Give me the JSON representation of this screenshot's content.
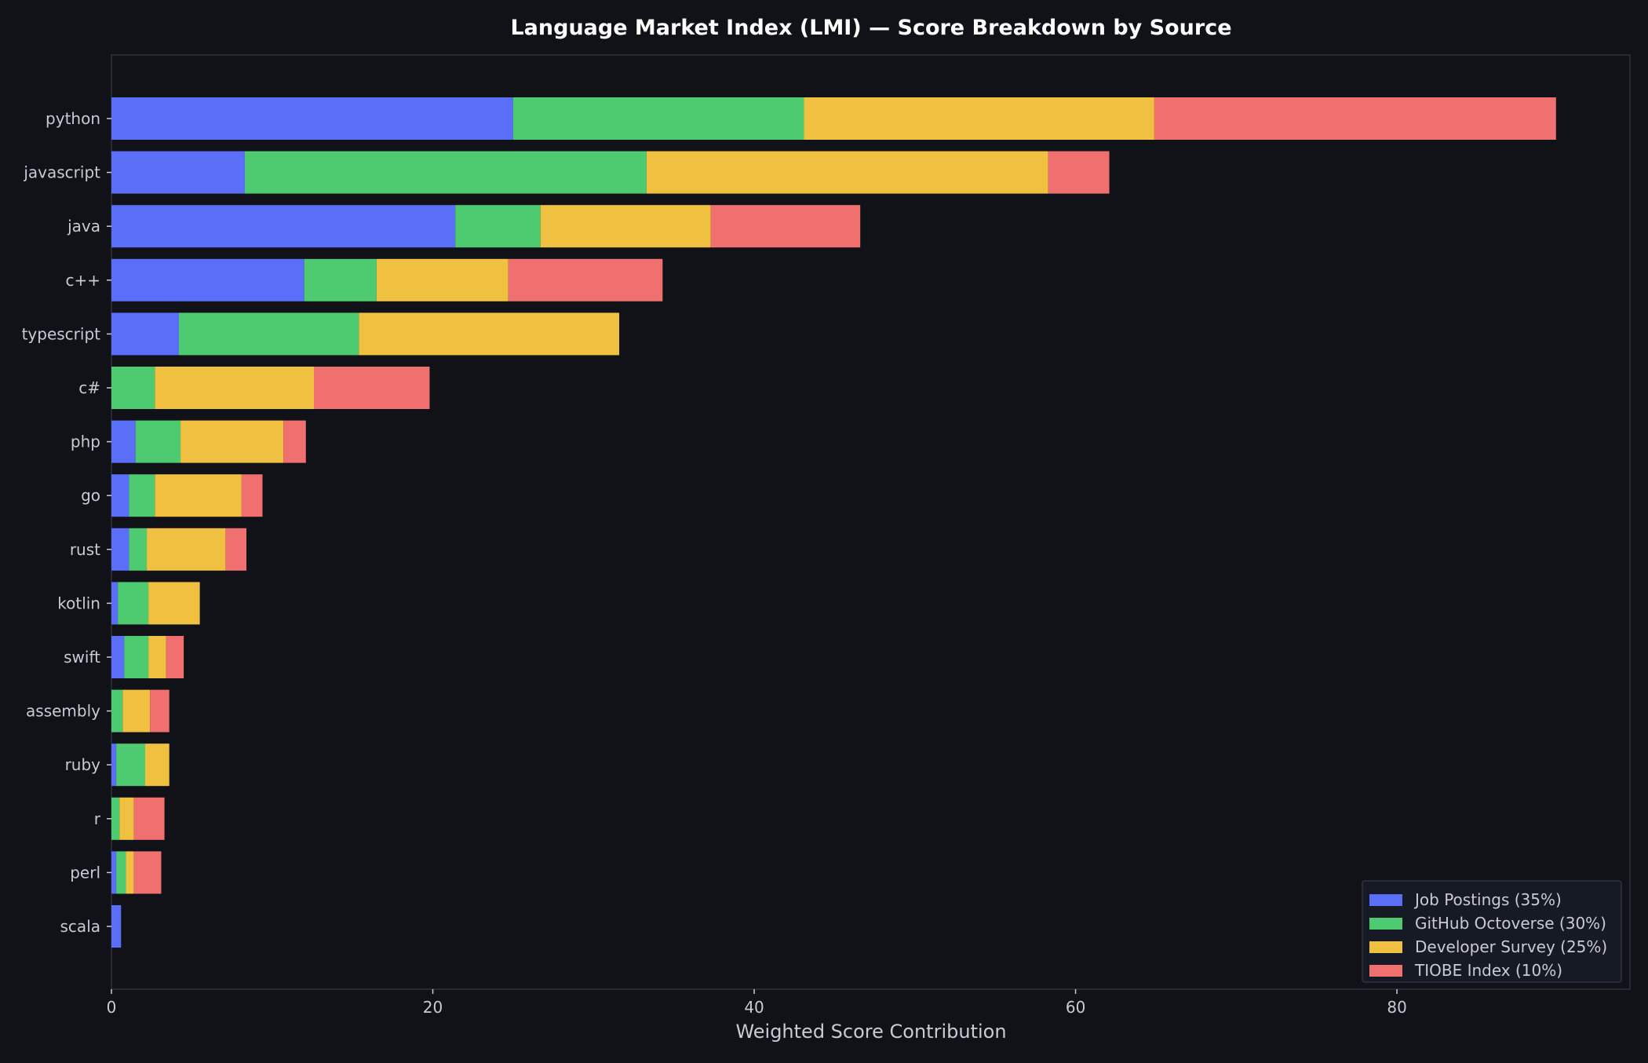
{
  "colors": {
    "background": "#111217",
    "axes_border": "#2f3142",
    "text": "#c8cbd6",
    "title": "#ffffff",
    "legend_bg": "#161a24",
    "legend_border": "#2e3343"
  },
  "chart_data": {
    "type": "bar",
    "orientation": "horizontal",
    "stacked": true,
    "title": "Language Market Index (LMI) — Score Breakdown by Source",
    "xlabel": "Weighted Score Contribution",
    "ylabel": "",
    "xlim": [
      0,
      94.5
    ],
    "xticks": [
      0,
      20,
      40,
      60,
      80
    ],
    "grid": false,
    "legend_position": "lower-right",
    "categories": [
      "python",
      "javascript",
      "java",
      "c++",
      "typescript",
      "c#",
      "php",
      "go",
      "rust",
      "kotlin",
      "swift",
      "assembly",
      "ruby",
      "r",
      "perl",
      "scala"
    ],
    "series": [
      {
        "name": "Job Postings (35%)",
        "color": "#5b6ef8",
        "values": [
          25.0,
          8.3,
          21.4,
          12.0,
          4.2,
          0.0,
          1.5,
          1.1,
          1.1,
          0.4,
          0.8,
          0.0,
          0.3,
          0.0,
          0.3,
          0.6
        ]
      },
      {
        "name": "GitHub Octoverse (30%)",
        "color": "#4ecb71",
        "values": [
          18.1,
          25.0,
          5.3,
          4.5,
          11.2,
          2.7,
          2.8,
          1.6,
          1.1,
          1.9,
          1.5,
          0.7,
          1.8,
          0.5,
          0.6,
          0.0
        ]
      },
      {
        "name": "Developer Survey (25%)",
        "color": "#f0c040",
        "values": [
          21.8,
          25.0,
          10.6,
          8.2,
          16.2,
          9.9,
          6.4,
          5.4,
          4.9,
          3.2,
          1.1,
          1.7,
          1.5,
          0.9,
          0.5,
          0.0
        ]
      },
      {
        "name": "TIOBE Index (10%)",
        "color": "#f07070",
        "values": [
          25.0,
          3.8,
          9.3,
          9.6,
          0.0,
          7.2,
          1.4,
          1.3,
          1.3,
          0.0,
          1.1,
          1.2,
          0.0,
          1.9,
          1.7,
          0.0
        ]
      }
    ]
  }
}
